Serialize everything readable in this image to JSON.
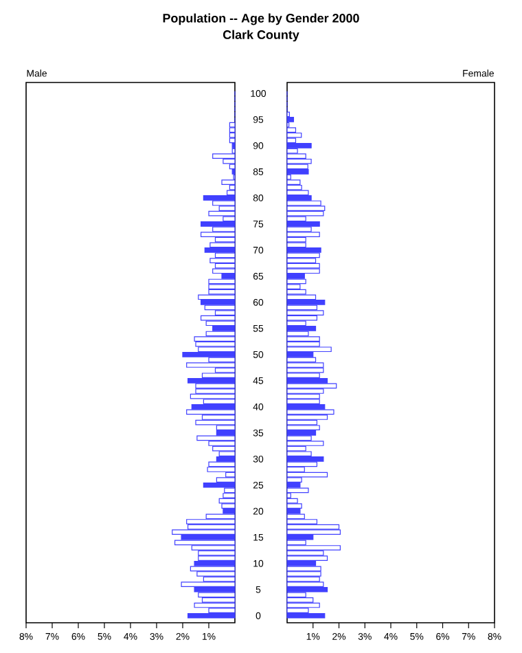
{
  "chart_data": [
    {
      "type": "bar",
      "orientation": "horizontal",
      "title": "Population -- Age by Gender 2000",
      "subtitle": "Clark County",
      "categories": [
        "100",
        null,
        null,
        null,
        null,
        "95",
        null,
        null,
        null,
        null,
        "90",
        null,
        null,
        null,
        null,
        "85",
        null,
        null,
        null,
        null,
        "80",
        null,
        null,
        null,
        null,
        "75",
        null,
        null,
        null,
        null,
        "70",
        null,
        null,
        null,
        null,
        "65",
        null,
        null,
        null,
        null,
        "60",
        null,
        null,
        null,
        null,
        "55",
        null,
        null,
        null,
        null,
        "50",
        null,
        null,
        null,
        null,
        "45",
        null,
        null,
        null,
        null,
        "40",
        null,
        null,
        null,
        null,
        "35",
        null,
        null,
        null,
        null,
        "30",
        null,
        null,
        null,
        null,
        "25",
        null,
        null,
        null,
        null,
        "20",
        null,
        null,
        null,
        null,
        "15",
        null,
        null,
        null,
        null,
        "10",
        null,
        null,
        null,
        null,
        "5",
        null,
        null,
        null,
        null,
        "0"
      ],
      "xlim": [
        8,
        0
      ],
      "xticks": [
        {
          "value": 8,
          "label": "8%"
        },
        {
          "value": 7,
          "label": "7%"
        },
        {
          "value": 6,
          "label": "6%"
        },
        {
          "value": 5,
          "label": "5%"
        },
        {
          "value": 4,
          "label": "4%"
        },
        {
          "value": 3,
          "label": "3%"
        },
        {
          "value": 2,
          "label": "2%"
        },
        {
          "value": 1,
          "label": "1%"
        }
      ],
      "series": [
        {
          "name": "Male",
          "color": "#4040ff",
          "colors": [
            "#4040ff",
            "#ffffff",
            "#ffffff",
            "#ffffff",
            "#ffffff",
            "#4040ff",
            "#ffffff",
            "#ffffff",
            "#ffffff",
            "#ffffff",
            "#4040ff",
            "#ffffff",
            "#ffffff",
            "#ffffff",
            "#ffffff",
            "#4040ff",
            "#ffffff",
            "#ffffff",
            "#ffffff",
            "#ffffff",
            "#4040ff",
            "#ffffff",
            "#ffffff",
            "#ffffff",
            "#ffffff",
            "#4040ff",
            "#ffffff",
            "#ffffff",
            "#ffffff",
            "#ffffff",
            "#4040ff",
            "#ffffff",
            "#ffffff",
            "#ffffff",
            "#ffffff",
            "#4040ff",
            "#ffffff",
            "#ffffff",
            "#ffffff",
            "#ffffff",
            "#4040ff",
            "#ffffff",
            "#ffffff",
            "#ffffff",
            "#ffffff",
            "#4040ff",
            "#ffffff",
            "#ffffff",
            "#ffffff",
            "#ffffff",
            "#4040ff",
            "#ffffff",
            "#ffffff",
            "#ffffff",
            "#ffffff",
            "#4040ff",
            "#ffffff",
            "#ffffff",
            "#ffffff",
            "#ffffff",
            "#4040ff",
            "#ffffff",
            "#ffffff",
            "#ffffff",
            "#ffffff",
            "#4040ff",
            "#ffffff",
            "#ffffff",
            "#ffffff",
            "#ffffff",
            "#4040ff",
            "#ffffff",
            "#ffffff",
            "#ffffff",
            "#ffffff",
            "#4040ff",
            "#ffffff",
            "#ffffff",
            "#ffffff",
            "#ffffff",
            "#4040ff",
            "#ffffff",
            "#ffffff",
            "#ffffff",
            "#ffffff",
            "#4040ff",
            "#ffffff",
            "#ffffff",
            "#ffffff",
            "#ffffff",
            "#4040ff",
            "#ffffff",
            "#ffffff",
            "#ffffff",
            "#ffffff",
            "#4040ff",
            "#ffffff",
            "#ffffff",
            "#ffffff",
            "#ffffff",
            "#4040ff"
          ],
          "values": [
            0,
            0,
            0,
            0,
            0,
            0,
            0.2,
            0.2,
            0.2,
            0.2,
            0.1,
            0.1,
            0.85,
            0.45,
            0.2,
            0.1,
            0.05,
            0.5,
            0.2,
            0.3,
            1.2,
            0.85,
            0.6,
            1.0,
            0.45,
            1.3,
            0.85,
            1.3,
            0.75,
            0.95,
            1.15,
            0.75,
            0.95,
            0.75,
            0.85,
            0.5,
            1.0,
            1.0,
            1.0,
            1.4,
            1.3,
            1.15,
            0.75,
            1.3,
            1.1,
            0.85,
            1.1,
            1.55,
            1.5,
            1.4,
            2.0,
            1.0,
            1.85,
            0.75,
            1.25,
            1.8,
            1.5,
            1.5,
            1.7,
            1.2,
            1.65,
            1.85,
            1.25,
            1.5,
            0.7,
            0.7,
            1.45,
            1.0,
            0.85,
            0.6,
            0.7,
            1.0,
            1.05,
            0.35,
            0.7,
            1.2,
            0.4,
            0.45,
            0.6,
            0.5,
            0.45,
            1.1,
            1.85,
            1.8,
            2.4,
            2.05,
            2.3,
            1.65,
            1.4,
            1.4,
            1.55,
            1.7,
            1.45,
            1.2,
            2.05,
            1.55,
            1.4,
            1.25,
            1.55,
            1.0,
            1.8
          ]
        }
      ]
    },
    {
      "type": "bar",
      "orientation": "horizontal",
      "tick_labels": "x",
      "categories": [
        "100",
        null,
        null,
        null,
        null,
        "95",
        null,
        null,
        null,
        null,
        "90",
        null,
        null,
        null,
        null,
        "85",
        null,
        null,
        null,
        null,
        "80",
        null,
        null,
        null,
        null,
        "75",
        null,
        null,
        null,
        null,
        "70",
        null,
        null,
        null,
        null,
        "65",
        null,
        null,
        null,
        null,
        "60",
        null,
        null,
        null,
        null,
        "55",
        null,
        null,
        null,
        null,
        "50",
        null,
        null,
        null,
        null,
        "45",
        null,
        null,
        null,
        null,
        "40",
        null,
        null,
        null,
        null,
        "35",
        null,
        null,
        null,
        null,
        "30",
        null,
        null,
        null,
        null,
        "25",
        null,
        null,
        null,
        null,
        "20",
        null,
        null,
        null,
        null,
        "15",
        null,
        null,
        null,
        null,
        "10",
        null,
        null,
        null,
        null,
        "5",
        null,
        null,
        null,
        null,
        "0"
      ],
      "xlim": [
        0,
        8
      ],
      "xticks": [
        {
          "value": 1,
          "label": "1%"
        },
        {
          "value": 2,
          "label": "2%"
        },
        {
          "value": 3,
          "label": "3%"
        },
        {
          "value": 4,
          "label": "4%"
        },
        {
          "value": 5,
          "label": "5%"
        },
        {
          "value": 6,
          "label": "6%"
        },
        {
          "value": 7,
          "label": "7%"
        },
        {
          "value": 8,
          "label": "8%"
        }
      ],
      "series": [
        {
          "name": "Female",
          "color": "#4040ff",
          "colors": [
            "#4040ff",
            "#ffffff",
            "#ffffff",
            "#ffffff",
            "#ffffff",
            "#4040ff",
            "#ffffff",
            "#ffffff",
            "#ffffff",
            "#ffffff",
            "#4040ff",
            "#ffffff",
            "#ffffff",
            "#ffffff",
            "#ffffff",
            "#4040ff",
            "#ffffff",
            "#ffffff",
            "#ffffff",
            "#ffffff",
            "#4040ff",
            "#ffffff",
            "#ffffff",
            "#ffffff",
            "#ffffff",
            "#4040ff",
            "#ffffff",
            "#ffffff",
            "#ffffff",
            "#ffffff",
            "#4040ff",
            "#ffffff",
            "#ffffff",
            "#ffffff",
            "#ffffff",
            "#4040ff",
            "#ffffff",
            "#ffffff",
            "#ffffff",
            "#ffffff",
            "#4040ff",
            "#ffffff",
            "#ffffff",
            "#ffffff",
            "#ffffff",
            "#4040ff",
            "#ffffff",
            "#ffffff",
            "#ffffff",
            "#ffffff",
            "#4040ff",
            "#ffffff",
            "#ffffff",
            "#ffffff",
            "#ffffff",
            "#4040ff",
            "#ffffff",
            "#ffffff",
            "#ffffff",
            "#ffffff",
            "#4040ff",
            "#ffffff",
            "#ffffff",
            "#ffffff",
            "#ffffff",
            "#4040ff",
            "#ffffff",
            "#ffffff",
            "#ffffff",
            "#ffffff",
            "#4040ff",
            "#ffffff",
            "#ffffff",
            "#ffffff",
            "#ffffff",
            "#4040ff",
            "#ffffff",
            "#ffffff",
            "#ffffff",
            "#ffffff",
            "#4040ff",
            "#ffffff",
            "#ffffff",
            "#ffffff",
            "#ffffff",
            "#4040ff",
            "#ffffff",
            "#ffffff",
            "#ffffff",
            "#ffffff",
            "#4040ff",
            "#ffffff",
            "#ffffff",
            "#ffffff",
            "#ffffff",
            "#4040ff",
            "#ffffff",
            "#ffffff",
            "#ffffff",
            "#ffffff",
            "#4040ff"
          ],
          "values": [
            0,
            0,
            0,
            0,
            0.09,
            0.25,
            0.07,
            0.33,
            0.55,
            0.33,
            0.93,
            0.4,
            0.72,
            0.93,
            0.8,
            0.82,
            0.14,
            0.5,
            0.56,
            0.82,
            0.93,
            1.3,
            1.45,
            1.4,
            0.72,
            1.25,
            0.93,
            1.25,
            0.72,
            0.72,
            1.3,
            1.25,
            1.1,
            1.25,
            1.25,
            0.67,
            0.72,
            0.5,
            0.72,
            1.1,
            1.45,
            1.15,
            1.4,
            1.15,
            0.72,
            1.1,
            0.82,
            1.25,
            1.25,
            1.7,
            1.0,
            1.1,
            1.4,
            1.4,
            1.25,
            1.55,
            1.9,
            1.4,
            1.25,
            1.25,
            1.45,
            1.8,
            1.55,
            1.15,
            1.25,
            1.1,
            0.93,
            1.4,
            0.72,
            0.93,
            1.4,
            1.15,
            0.67,
            1.55,
            0.56,
            0.5,
            0.82,
            0.14,
            0.4,
            0.56,
            0.5,
            0.67,
            1.15,
            2.0,
            2.05,
            1.0,
            0.72,
            2.05,
            1.4,
            1.55,
            1.1,
            1.3,
            1.3,
            1.25,
            1.4,
            1.55,
            0.72,
            1.0,
            1.25,
            0.82,
            1.45
          ]
        }
      ]
    }
  ]
}
